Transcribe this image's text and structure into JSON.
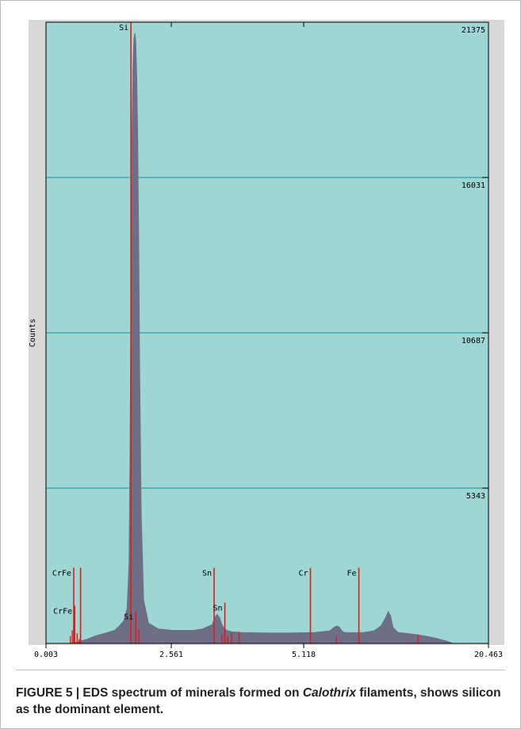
{
  "chart_data": {
    "type": "line",
    "title": "",
    "xlabel": "",
    "ylabel": "Counts",
    "ylim": [
      0,
      21375
    ],
    "x_tick_labels": [
      "0.003",
      "2.561",
      "5.118",
      "20.463"
    ],
    "y_tick_labels": [
      "21375",
      "16031",
      "10687",
      "5343"
    ],
    "y_tick_values": [
      21375,
      16031,
      10687,
      5343
    ],
    "grid": true,
    "plot_background": "#9dd6d2",
    "spectrum_color": "#6e6e86",
    "marker_color": "#e21a1a",
    "gridline_color": "#2aa6a6",
    "spectrum": {
      "x": [
        0.6,
        0.85,
        1.0,
        1.2,
        1.4,
        1.5,
        1.6,
        1.66,
        1.7,
        1.72,
        1.74,
        1.76,
        1.78,
        1.8,
        1.82,
        1.84,
        1.86,
        1.88,
        1.9,
        1.92,
        1.95,
        2.0,
        2.1,
        2.3,
        2.6,
        3.0,
        3.2,
        3.4,
        3.46,
        3.5,
        3.55,
        3.6,
        3.65,
        3.7,
        3.8,
        4.0,
        4.5,
        5.0,
        5.5,
        5.8,
        5.9,
        5.95,
        6.0,
        6.05,
        6.1,
        6.3,
        6.5,
        6.7,
        6.85,
        6.95,
        7.0,
        7.05,
        7.1,
        7.2,
        7.4,
        7.6,
        7.8,
        8.0,
        8.2,
        8.3
      ],
      "y": [
        30,
        150,
        250,
        350,
        450,
        600,
        800,
        1200,
        2800,
        6500,
        12000,
        17500,
        19800,
        20800,
        21000,
        20700,
        19500,
        17300,
        13800,
        9300,
        4500,
        1500,
        700,
        500,
        450,
        450,
        500,
        650,
        900,
        1000,
        900,
        650,
        520,
        450,
        400,
        380,
        360,
        360,
        380,
        430,
        560,
        600,
        560,
        440,
        380,
        370,
        380,
        430,
        600,
        900,
        1100,
        950,
        550,
        380,
        340,
        300,
        240,
        170,
        80,
        20
      ]
    },
    "element_markers": [
      {
        "label": "Si",
        "x": 1.74,
        "height": 21375,
        "label_pos": "top"
      },
      {
        "label": "Si",
        "x": 1.84,
        "height": 1100,
        "label_pos": "side"
      },
      {
        "label": "CrFe",
        "x": 0.57,
        "height": 2600,
        "label_pos": "top"
      },
      {
        "label": "",
        "x": 0.71,
        "height": 2600,
        "label_pos": "none"
      },
      {
        "label": "CrFe",
        "x": 0.59,
        "height": 1300,
        "label_pos": "top"
      },
      {
        "label": "Sn",
        "x": 3.44,
        "height": 2600,
        "label_pos": "top"
      },
      {
        "label": "Sn",
        "x": 3.66,
        "height": 1400,
        "label_pos": "top"
      },
      {
        "label": "Cr",
        "x": 5.41,
        "height": 2600,
        "label_pos": "top"
      },
      {
        "label": "Fe",
        "x": 6.4,
        "height": 2600,
        "label_pos": "top"
      }
    ],
    "minor_markers": [
      {
        "x": 0.5,
        "height": 250
      },
      {
        "x": 0.54,
        "height": 450
      },
      {
        "x": 0.64,
        "height": 350
      },
      {
        "x": 0.68,
        "height": 150
      },
      {
        "x": 1.9,
        "height": 500
      },
      {
        "x": 3.6,
        "height": 300
      },
      {
        "x": 3.72,
        "height": 250
      },
      {
        "x": 3.8,
        "height": 350
      },
      {
        "x": 3.95,
        "height": 400
      },
      {
        "x": 5.94,
        "height": 250
      },
      {
        "x": 7.61,
        "height": 300
      }
    ]
  },
  "caption": {
    "part1": "FIGURE 5 | EDS spectrum of minerals formed on ",
    "italic": "Calothrix",
    "part2": " filaments, shows silicon as the dominant element."
  }
}
